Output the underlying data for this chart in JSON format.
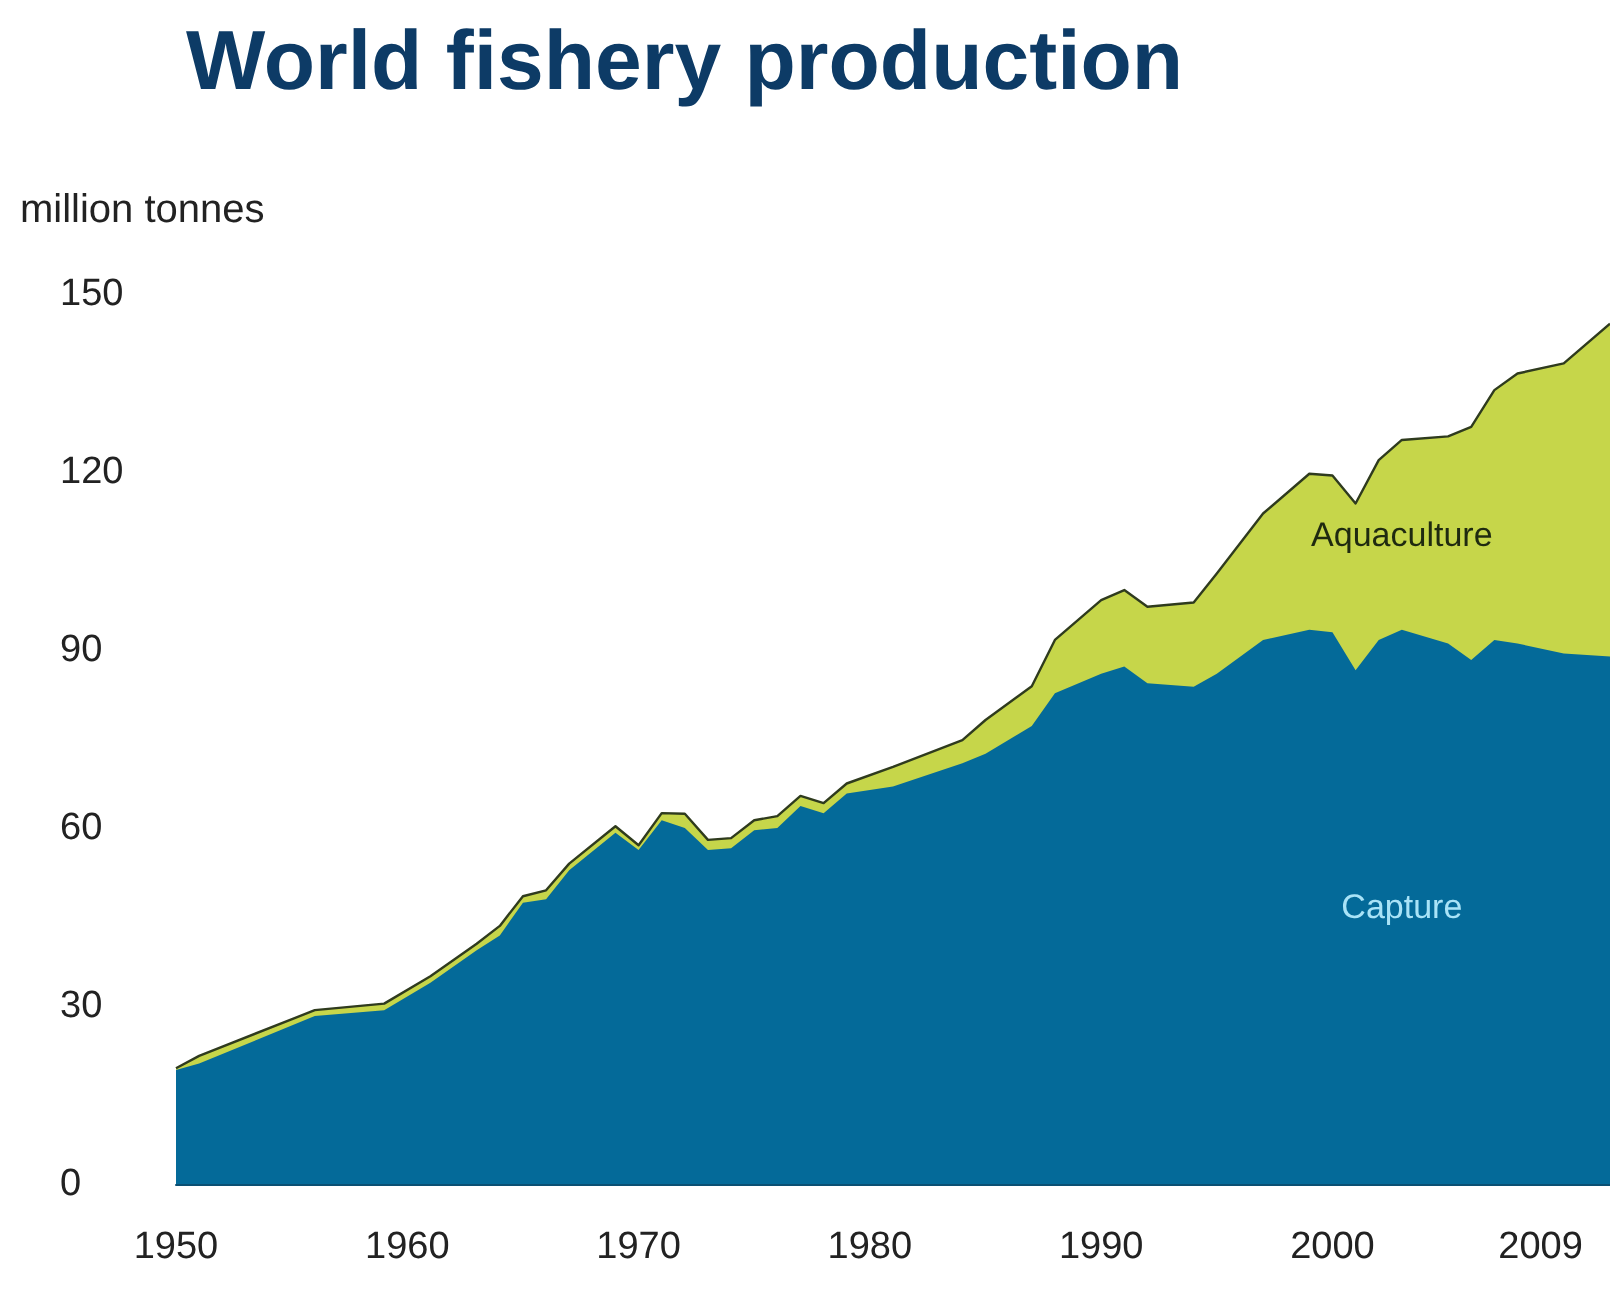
{
  "chart_data": {
    "type": "area",
    "title": "World fishery production",
    "ylabel": "million tonnes",
    "stacked": true,
    "x": [
      1950,
      1951,
      1956,
      1959,
      1961,
      1963,
      1964,
      1965,
      1966,
      1967,
      1969,
      1970,
      1971,
      1972,
      1973,
      1974,
      1975,
      1976,
      1977,
      1978,
      1979,
      1981,
      1984,
      1985,
      1987,
      1988,
      1990,
      1991,
      1992,
      1994,
      1995,
      1997,
      1999,
      2000,
      2001,
      2002,
      2003,
      2005,
      2006,
      2007,
      2008,
      2010,
      2012
    ],
    "series": [
      {
        "name": "Capture",
        "color": "#046a99",
        "values": [
          19.2,
          20.3,
          28.3,
          29.3,
          33.9,
          39.4,
          41.9,
          47.4,
          48.0,
          52.9,
          59.2,
          56.3,
          61.3,
          60.0,
          56.3,
          56.6,
          59.6,
          60.0,
          63.7,
          62.5,
          65.8,
          67.0,
          70.9,
          72.5,
          77.2,
          82.7,
          86.0,
          87.2,
          84.4,
          83.8,
          86.0,
          91.7,
          93.4,
          93.0,
          86.6,
          91.7,
          93.4,
          91.1,
          88.3,
          91.7,
          91.1,
          89.4,
          88.9
        ]
      },
      {
        "name": "Aquaculture",
        "color": "#c6d64a",
        "values": [
          0.3,
          1.3,
          1.0,
          1.1,
          1.1,
          1.1,
          1.6,
          1.1,
          1.5,
          1.1,
          1.1,
          0.8,
          1.2,
          2.4,
          1.7,
          1.7,
          1.7,
          2.0,
          1.7,
          1.7,
          1.7,
          3.3,
          3.9,
          5.7,
          6.7,
          9.0,
          12.4,
          12.9,
          12.9,
          14.2,
          16.9,
          21.3,
          26.3,
          26.4,
          28.1,
          30.3,
          32.0,
          34.9,
          39.3,
          42.1,
          45.5,
          48.9,
          56.1
        ]
      }
    ],
    "xlim": [
      1950,
      2012
    ],
    "xticks": [
      1950,
      1960,
      1970,
      1980,
      1990,
      2000,
      2009
    ],
    "ylim": [
      0,
      150
    ],
    "yticks": [
      0,
      30,
      60,
      90,
      120,
      150
    ],
    "grid": false,
    "legend": false
  }
}
